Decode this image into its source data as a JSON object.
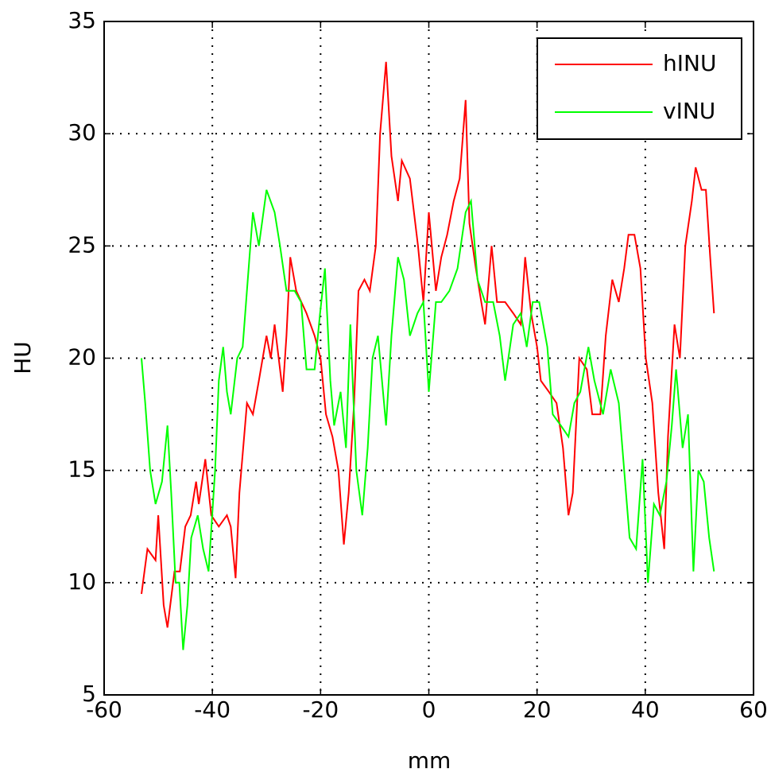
{
  "chart_data": {
    "type": "line",
    "xlabel": "mm",
    "ylabel": "HU",
    "xlim": [
      -60,
      60
    ],
    "ylim": [
      5,
      35
    ],
    "xticks": [
      -60,
      -40,
      -20,
      0,
      20,
      40,
      60
    ],
    "yticks": [
      5,
      10,
      15,
      20,
      25,
      30,
      35
    ],
    "grid": true,
    "legend": "northeast",
    "series": [
      {
        "name": "hINU",
        "color": "#ff0000",
        "x": [
          -53.1,
          -52,
          -50.5,
          -50,
          -49,
          -48.3,
          -47,
          -46,
          -45,
          -44,
          -43,
          -42.5,
          -41.3,
          -40.2,
          -38.8,
          -37.3,
          -36.6,
          -35.7,
          -35,
          -33.6,
          -32.5,
          -31.4,
          -30,
          -29.2,
          -28.5,
          -27,
          -26.3,
          -25.6,
          -24.5,
          -22.6,
          -21.1,
          -20,
          -19,
          -17.8,
          -16.7,
          -15.7,
          -14.8,
          -13.8,
          -13,
          -11.9,
          -10.9,
          -9.8,
          -9,
          -7.9,
          -6.9,
          -5.7,
          -5,
          -3.5,
          -2,
          -1,
          0,
          1.3,
          2.3,
          3.4,
          4.6,
          5.7,
          6.8,
          7.5,
          8.7,
          9.7,
          10.4,
          11.6,
          12.6,
          14.1,
          15.6,
          17,
          17.8,
          18.9,
          20,
          20.7,
          22.2,
          23.6,
          24.8,
          25.8,
          26.6,
          27.8,
          29.2,
          30.2,
          31.7,
          32.7,
          33.9,
          35.1,
          36.1,
          36.9,
          38,
          39.1,
          40.1,
          41.3,
          42.4,
          43.5,
          44.2,
          45.4,
          46.4,
          47.4,
          48.6,
          49.3,
          50.4,
          51.2,
          52,
          52.7
        ],
        "values": [
          9.5,
          11.5,
          11,
          13,
          9,
          8,
          10.5,
          10.5,
          12.5,
          13,
          14.5,
          13.5,
          15.5,
          13,
          12.5,
          13,
          12.5,
          10.2,
          14,
          18,
          17.5,
          19,
          21,
          20,
          21.5,
          18.5,
          21,
          24.5,
          23,
          22,
          21,
          20,
          17.5,
          16.5,
          15,
          11.7,
          14,
          18,
          23,
          23.5,
          23,
          25,
          30,
          33.2,
          29,
          27,
          28.8,
          28,
          25,
          22.5,
          26.5,
          23,
          24.5,
          25.5,
          27,
          28,
          31.5,
          26,
          24,
          22.5,
          21.5,
          25,
          22.5,
          22.5,
          22,
          21.5,
          24.5,
          22,
          20.5,
          19,
          18.5,
          18,
          16,
          13,
          14,
          20,
          19.5,
          17.5,
          17.5,
          21,
          23.5,
          22.5,
          24,
          25.5,
          25.5,
          24,
          20,
          18,
          14,
          11.5,
          16.5,
          21.5,
          20,
          25,
          27,
          28.5,
          27.5,
          27.5,
          24.5,
          22
        ]
      },
      {
        "name": "vINU",
        "color": "#00ff00",
        "x": [
          -53.1,
          -52.4,
          -51.5,
          -50.5,
          -49.3,
          -48.3,
          -47.6,
          -46.8,
          -46.1,
          -45.4,
          -44.6,
          -43.9,
          -42.7,
          -41.7,
          -40.7,
          -39.5,
          -38.8,
          -38,
          -37.3,
          -36.6,
          -35.4,
          -34.4,
          -33.3,
          -32.5,
          -31.4,
          -30,
          -28.5,
          -27.5,
          -26.3,
          -24.8,
          -23.6,
          -22.6,
          -21.1,
          -20.1,
          -19.2,
          -18.2,
          -17.5,
          -16.3,
          -15.3,
          -14.5,
          -13.4,
          -12.3,
          -11.3,
          -10.4,
          -9.4,
          -7.9,
          -6.9,
          -5.7,
          -4.6,
          -3.5,
          -2.1,
          -1,
          0,
          1.3,
          2.3,
          3.8,
          5.3,
          6.8,
          7.8,
          9,
          10.4,
          11.9,
          13.1,
          14.1,
          15.6,
          17,
          18.1,
          19.2,
          20.4,
          21.9,
          22.9,
          24.4,
          25.8,
          26.9,
          28,
          29.5,
          30.6,
          32.2,
          33.6,
          35.1,
          36.1,
          37.1,
          38.3,
          39.5,
          40.5,
          41.6,
          42.7,
          43.9,
          44.9,
          45.7,
          46.9,
          47.9,
          48.9,
          49.8,
          50.8,
          51.8,
          52.7
        ],
        "values": [
          20,
          18,
          15,
          13.5,
          14.5,
          17,
          14,
          10,
          10,
          7,
          9,
          12,
          13,
          11.5,
          10.5,
          15,
          19,
          20.5,
          18.5,
          17.5,
          20,
          20.5,
          24,
          26.5,
          25,
          27.5,
          26.5,
          25,
          23,
          23,
          22.5,
          19.5,
          19.5,
          22,
          24,
          19,
          17,
          18.5,
          16,
          21.5,
          15,
          13,
          16,
          20,
          21,
          17,
          21,
          24.5,
          23.5,
          21,
          22,
          22.5,
          18.5,
          22.5,
          22.5,
          23,
          24,
          26.5,
          27,
          23.5,
          22.5,
          22.5,
          21,
          19,
          21.5,
          22,
          20.5,
          22.5,
          22.5,
          20.5,
          17.5,
          17,
          16.5,
          18,
          18.5,
          20.5,
          19,
          17.5,
          19.5,
          18,
          15,
          12,
          11.5,
          15.5,
          10,
          13.5,
          13,
          14.5,
          17,
          19.5,
          16,
          17.5,
          10.5,
          15,
          14.5,
          12,
          10.5
        ]
      }
    ]
  }
}
